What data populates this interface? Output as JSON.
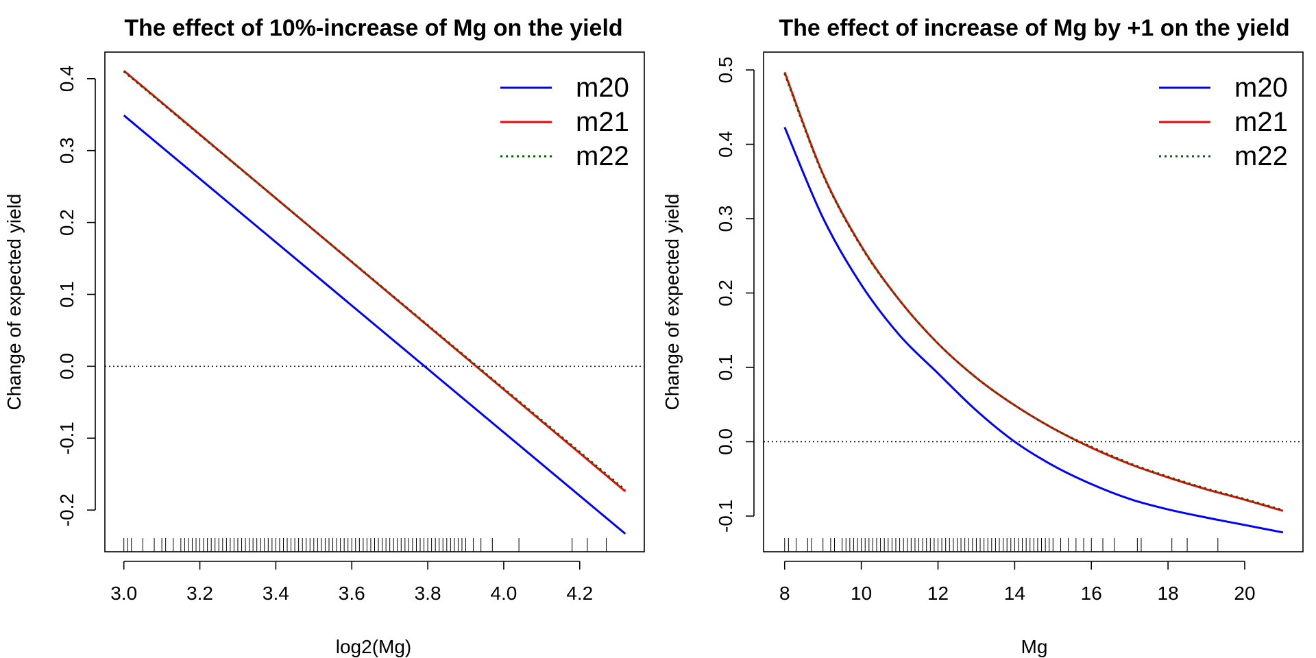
{
  "chart_data": [
    {
      "type": "line",
      "title": "The effect of 10%-increase of Mg on the yield",
      "xlabel": "log2(Mg)",
      "ylabel": "Change of expected yield",
      "xlim": [
        2.95,
        4.37
      ],
      "ylim": [
        -0.258,
        0.437
      ],
      "x_ticks": [
        "3.0",
        "3.2",
        "3.4",
        "3.6",
        "3.8",
        "4.0",
        "4.2"
      ],
      "x_tick_values": [
        3.0,
        3.2,
        3.4,
        3.6,
        3.8,
        4.0,
        4.2
      ],
      "y_ticks": [
        "-0.2",
        "-0.1",
        "0.0",
        "0.1",
        "0.2",
        "0.3",
        "0.4"
      ],
      "y_tick_values": [
        -0.2,
        -0.1,
        0.0,
        0.1,
        0.2,
        0.3,
        0.4
      ],
      "reference_line": 0.0,
      "grid": false,
      "legend_position": "top-right",
      "series": [
        {
          "name": "m20",
          "color": "#0000ff",
          "dash": "solid",
          "x": [
            3.0,
            4.32
          ],
          "values": [
            0.349,
            -0.233
          ]
        },
        {
          "name": "m21",
          "color": "#ff0000",
          "dash": "solid",
          "x": [
            3.0,
            4.32
          ],
          "values": [
            0.411,
            -0.174
          ]
        },
        {
          "name": "m22",
          "color": "#006400",
          "dash": "dotted",
          "x": [
            3.0,
            4.32
          ],
          "values": [
            0.41,
            -0.172
          ]
        }
      ],
      "rug": [
        3.0,
        3.01,
        3.02,
        3.05,
        3.08,
        3.1,
        3.11,
        3.13,
        3.15,
        3.16,
        3.17,
        3.18,
        3.19,
        3.2,
        3.21,
        3.22,
        3.23,
        3.24,
        3.25,
        3.26,
        3.27,
        3.28,
        3.29,
        3.3,
        3.31,
        3.32,
        3.33,
        3.34,
        3.35,
        3.36,
        3.37,
        3.38,
        3.39,
        3.4,
        3.41,
        3.42,
        3.43,
        3.44,
        3.45,
        3.46,
        3.47,
        3.48,
        3.49,
        3.5,
        3.51,
        3.52,
        3.53,
        3.54,
        3.55,
        3.56,
        3.57,
        3.58,
        3.59,
        3.6,
        3.61,
        3.62,
        3.63,
        3.64,
        3.65,
        3.66,
        3.67,
        3.68,
        3.69,
        3.7,
        3.71,
        3.72,
        3.73,
        3.74,
        3.75,
        3.76,
        3.77,
        3.78,
        3.79,
        3.8,
        3.81,
        3.82,
        3.83,
        3.84,
        3.85,
        3.86,
        3.87,
        3.88,
        3.89,
        3.9,
        3.92,
        3.94,
        3.97,
        4.04,
        4.18,
        4.22,
        4.27
      ]
    },
    {
      "type": "line",
      "title": "The effect of increase of Mg by +1 on the yield",
      "xlabel": "Mg",
      "ylabel": "Change of expected yield",
      "xlim": [
        7.45,
        21.52
      ],
      "ylim": [
        -0.148,
        0.524
      ],
      "x_ticks": [
        "8",
        "10",
        "12",
        "14",
        "16",
        "18",
        "20"
      ],
      "x_tick_values": [
        8,
        10,
        12,
        14,
        16,
        18,
        20
      ],
      "y_ticks": [
        "-0.1",
        "0.0",
        "0.1",
        "0.2",
        "0.3",
        "0.4",
        "0.5"
      ],
      "y_tick_values": [
        -0.1,
        0.0,
        0.1,
        0.2,
        0.3,
        0.4,
        0.5
      ],
      "reference_line": 0.0,
      "grid": false,
      "legend_position": "top-right",
      "series": [
        {
          "name": "m20",
          "color": "#0000ff",
          "dash": "solid",
          "x": [
            8,
            9,
            10,
            11,
            12,
            13,
            14,
            15,
            16,
            17,
            18,
            19,
            20,
            21
          ],
          "values": [
            0.423,
            0.301,
            0.211,
            0.143,
            0.092,
            0.042,
            0.0,
            -0.032,
            -0.057,
            -0.077,
            -0.091,
            -0.102,
            -0.112,
            -0.122
          ]
        },
        {
          "name": "m21",
          "color": "#ff0000",
          "dash": "solid",
          "x": [
            8,
            9,
            10,
            11,
            12,
            13,
            14,
            15,
            16,
            17,
            18,
            19,
            20,
            21
          ],
          "values": [
            0.497,
            0.36,
            0.263,
            0.19,
            0.132,
            0.086,
            0.049,
            0.018,
            -0.008,
            -0.03,
            -0.048,
            -0.064,
            -0.078,
            -0.093
          ]
        },
        {
          "name": "m22",
          "color": "#006400",
          "dash": "dotted",
          "x": [
            8,
            9,
            10,
            11,
            12,
            13,
            14,
            15,
            16,
            17,
            18,
            19,
            20,
            21
          ],
          "values": [
            0.495,
            0.359,
            0.262,
            0.19,
            0.132,
            0.086,
            0.049,
            0.018,
            -0.007,
            -0.029,
            -0.047,
            -0.063,
            -0.077,
            -0.092
          ]
        }
      ],
      "rug": [
        8.0,
        8.1,
        8.3,
        8.6,
        8.7,
        9.0,
        9.2,
        9.3,
        9.5,
        9.6,
        9.7,
        9.8,
        9.9,
        10.0,
        10.1,
        10.2,
        10.3,
        10.4,
        10.5,
        10.6,
        10.7,
        10.8,
        10.9,
        11.0,
        11.1,
        11.2,
        11.3,
        11.4,
        11.5,
        11.6,
        11.7,
        11.8,
        11.9,
        12.0,
        12.1,
        12.2,
        12.3,
        12.4,
        12.5,
        12.6,
        12.7,
        12.8,
        12.9,
        13.0,
        13.1,
        13.2,
        13.3,
        13.4,
        13.5,
        13.6,
        13.7,
        13.8,
        13.9,
        14.0,
        14.1,
        14.2,
        14.3,
        14.4,
        14.5,
        14.6,
        14.7,
        14.8,
        14.9,
        15.0,
        15.2,
        15.4,
        15.6,
        15.8,
        16.0,
        16.3,
        16.6,
        17.2,
        17.3,
        18.1,
        18.5,
        19.3
      ]
    }
  ]
}
